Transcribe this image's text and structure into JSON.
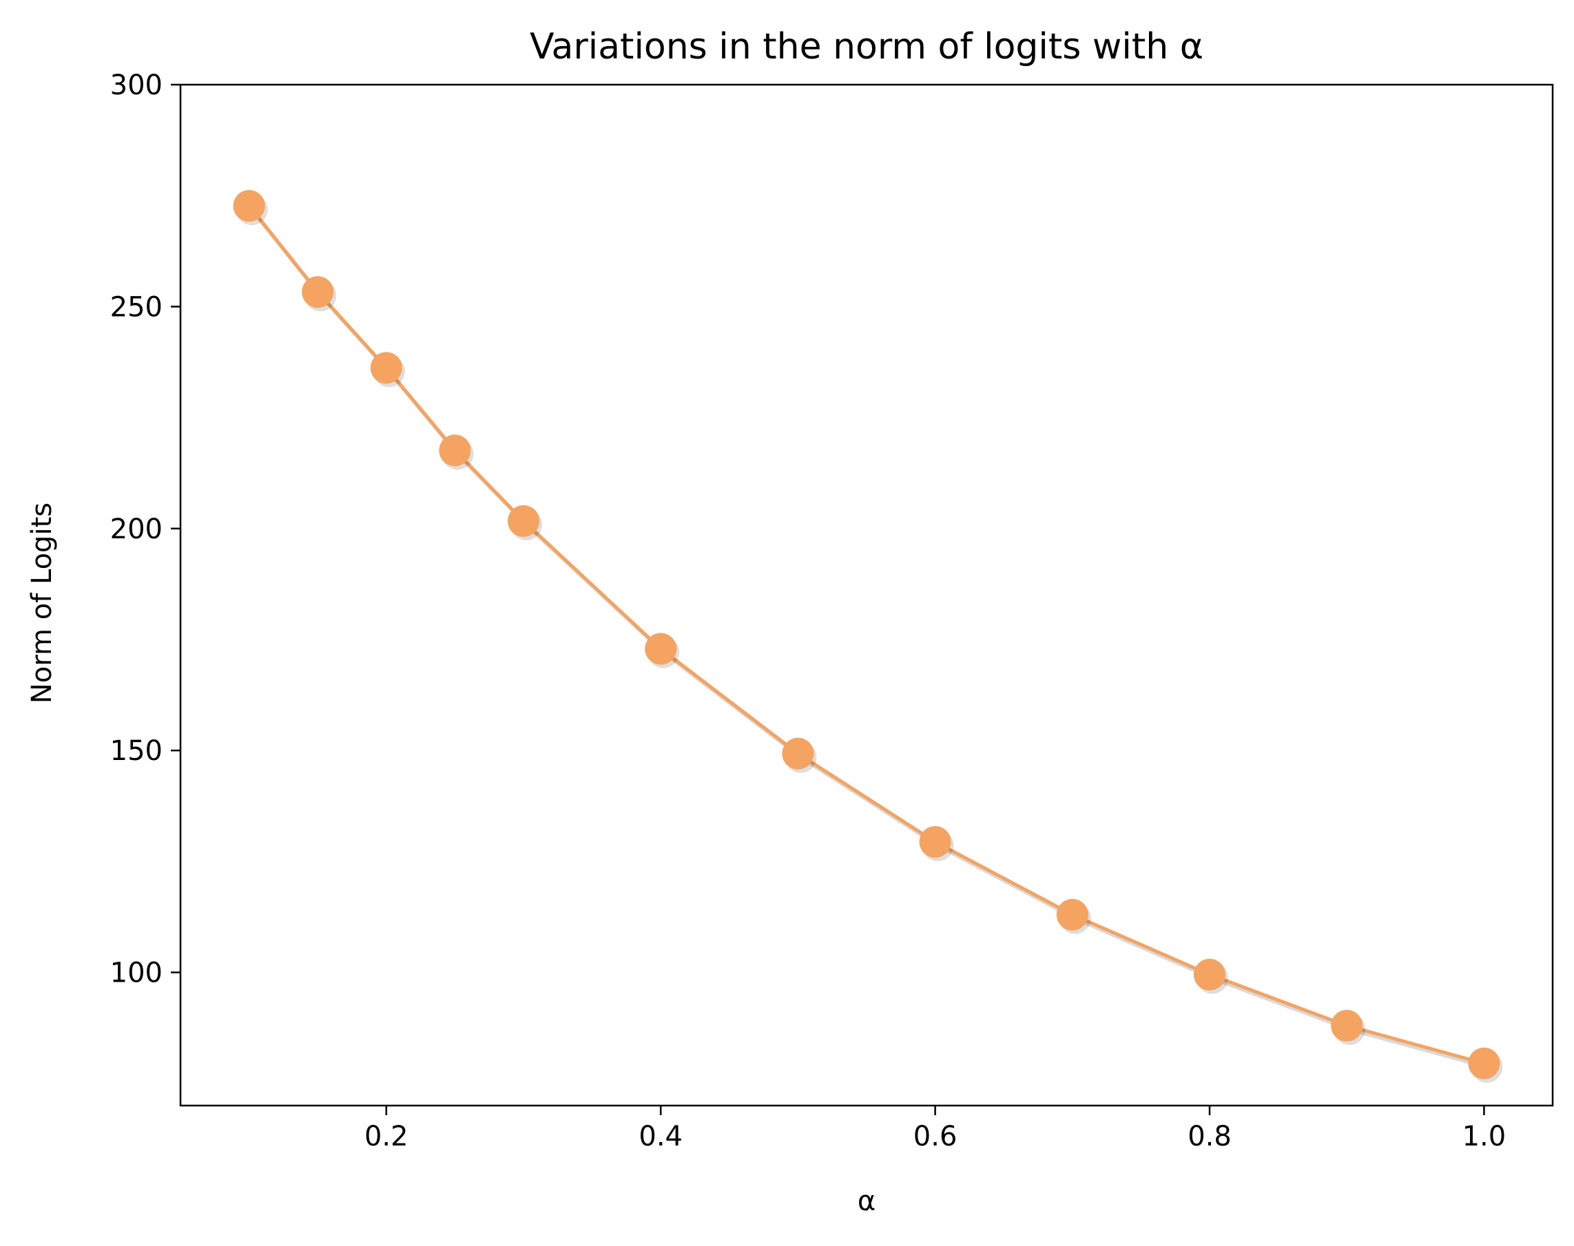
{
  "chart_data": {
    "type": "line",
    "title": "Variations in the norm of logits with α",
    "xlabel": "α",
    "ylabel": "Norm of Logits",
    "xlim": [
      0.05,
      1.05
    ],
    "ylim": [
      70,
      300
    ],
    "xticks": [
      0.2,
      0.4,
      0.6,
      0.8,
      1.0
    ],
    "xtick_labels": [
      "0.2",
      "0.4",
      "0.6",
      "0.8",
      "1.0"
    ],
    "yticks": [
      100,
      150,
      200,
      250,
      300
    ],
    "ytick_labels": [
      "100",
      "150",
      "200",
      "250",
      "300"
    ],
    "grid": false,
    "legend": "none",
    "line_color": "#f4a460",
    "marker": "circle",
    "series": [
      {
        "x": [
          0.1,
          0.15,
          0.2,
          0.25,
          0.3,
          0.4,
          0.5,
          0.6,
          0.7,
          0.8,
          0.9,
          1.0
        ],
        "y": [
          272.7,
          253.3,
          236.2,
          217.6,
          201.7,
          172.9,
          149.3,
          129.4,
          113.0,
          99.5,
          88.0,
          79.5
        ]
      }
    ]
  }
}
